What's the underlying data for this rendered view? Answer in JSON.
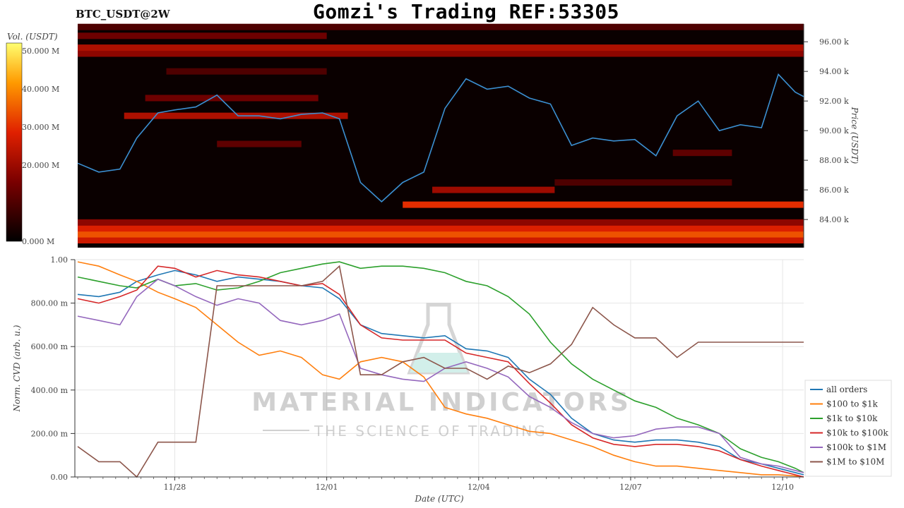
{
  "header": {
    "title": "Gomzi's Trading REF:53305",
    "pair": "BTC_USDT@2W"
  },
  "watermark": {
    "brand": "MATERIAL INDICATORS",
    "tagline": "THE SCIENCE OF TRADING"
  },
  "colors": {
    "price_line": "#3b8fd1",
    "all_orders": "#1f77b4",
    "r100_1k": "#ff7f0e",
    "r1k_10k": "#2ca02c",
    "r10k_100k": "#d62728",
    "r100k_1m": "#9467bd",
    "r1m_10m": "#8c564b"
  },
  "chart_data": [
    {
      "type": "heatmap",
      "title": "",
      "colorbar": {
        "label": "Vol. (USDT)",
        "ticks": [
          "0.000 M",
          "20.000 M",
          "30.000 M",
          "40.000 M",
          "50.000 M"
        ],
        "tick_values": [
          0,
          20,
          30,
          40,
          50
        ],
        "range": [
          0,
          52
        ]
      },
      "ylabel": "Price (USDT)",
      "y_ticks": [
        "84.00 k",
        "86.00 k",
        "88.00 k",
        "90.00 k",
        "92.00 k",
        "94.00 k",
        "96.00 k"
      ],
      "y_tick_values": [
        84,
        86,
        88,
        90,
        92,
        94,
        96
      ],
      "ylim": [
        82.1,
        97.2
      ],
      "xlim": [
        "11/26 02:00",
        "12/10 10:00"
      ],
      "price_series": {
        "name": "",
        "x": [
          "11/26 02:00",
          "11/26 12:00",
          "11/26 22:00",
          "11/27 06:00",
          "11/27 16:00",
          "11/28 00:00",
          "11/28 10:00",
          "11/28 20:00",
          "11/29 06:00",
          "11/29 16:00",
          "11/30 02:00",
          "11/30 12:00",
          "11/30 22:00",
          "12/01 06:00",
          "12/01 16:00",
          "12/02 02:00",
          "12/02 12:00",
          "12/02 22:00",
          "12/03 08:00",
          "12/03 18:00",
          "12/04 04:00",
          "12/04 14:00",
          "12/05 00:00",
          "12/05 10:00",
          "12/05 20:00",
          "12/06 06:00",
          "12/06 16:00",
          "12/07 02:00",
          "12/07 12:00",
          "12/07 22:00",
          "12/08 08:00",
          "12/08 18:00",
          "12/09 04:00",
          "12/09 14:00",
          "12/09 22:00",
          "12/10 06:00",
          "12/10 10:00"
        ],
        "y": [
          87.8,
          87.2,
          87.4,
          89.5,
          91.2,
          91.4,
          91.6,
          92.4,
          91.0,
          91.0,
          90.8,
          91.1,
          91.2,
          90.8,
          86.5,
          85.2,
          86.5,
          87.2,
          91.5,
          93.5,
          92.8,
          93.0,
          92.2,
          91.8,
          89.0,
          89.5,
          89.3,
          89.4,
          88.3,
          91.0,
          92.0,
          90.0,
          90.4,
          90.2,
          93.8,
          92.6,
          92.3
        ]
      },
      "bands": [
        {
          "price": 82.6,
          "from": "11/26 02:00",
          "to": "12/10 10:00",
          "level": 26
        },
        {
          "price": 83.0,
          "from": "11/26 02:00",
          "to": "12/10 10:00",
          "level": 34
        },
        {
          "price": 83.4,
          "from": "11/26 02:00",
          "to": "12/10 10:00",
          "level": 28
        },
        {
          "price": 83.8,
          "from": "11/26 02:00",
          "to": "12/10 10:00",
          "level": 18
        },
        {
          "price": 85.0,
          "from": "12/02 12:00",
          "to": "12/10 10:00",
          "level": 30
        },
        {
          "price": 86.0,
          "from": "12/03 02:00",
          "to": "12/05 12:00",
          "level": 20
        },
        {
          "price": 86.5,
          "from": "12/05 12:00",
          "to": "12/09 00:00",
          "level": 10
        },
        {
          "price": 89.1,
          "from": "11/28 20:00",
          "to": "11/30 12:00",
          "level": 12
        },
        {
          "price": 88.5,
          "from": "12/07 20:00",
          "to": "12/09 00:00",
          "level": 12
        },
        {
          "price": 91.0,
          "from": "11/27 00:00",
          "to": "12/01 10:00",
          "level": 22
        },
        {
          "price": 92.2,
          "from": "11/27 10:00",
          "to": "11/30 20:00",
          "level": 14
        },
        {
          "price": 94.0,
          "from": "11/27 20:00",
          "to": "12/01 00:00",
          "level": 10
        },
        {
          "price": 95.2,
          "from": "11/26 02:00",
          "to": "12/10 10:00",
          "level": 18
        },
        {
          "price": 95.6,
          "from": "11/26 02:00",
          "to": "12/10 10:00",
          "level": 22
        },
        {
          "price": 96.4,
          "from": "11/26 02:00",
          "to": "12/01 00:00",
          "level": 14
        },
        {
          "price": 97.0,
          "from": "11/26 02:00",
          "to": "12/10 10:00",
          "level": 10
        }
      ]
    },
    {
      "type": "line",
      "title": "",
      "xlabel": "Date (UTC)",
      "ylabel": "Norm. CVD (arb. u.)",
      "x_ticks": [
        "11/28",
        "12/01",
        "12/04",
        "12/07",
        "12/10"
      ],
      "y_ticks": [
        "0.00",
        "200.00 m",
        "400.00 m",
        "600.00 m",
        "800.00 m",
        "1.00"
      ],
      "y_tick_values": [
        0,
        0.2,
        0.4,
        0.6,
        0.8,
        1.0
      ],
      "ylim": [
        0,
        1.0
      ],
      "xlim": [
        "11/26 02:00",
        "12/10 10:00"
      ],
      "legend_position": "right",
      "x": [
        "11/26 02:00",
        "11/26 12:00",
        "11/26 22:00",
        "11/27 06:00",
        "11/27 16:00",
        "11/28 00:00",
        "11/28 10:00",
        "11/28 20:00",
        "11/29 06:00",
        "11/29 16:00",
        "11/30 02:00",
        "11/30 12:00",
        "11/30 22:00",
        "12/01 06:00",
        "12/01 16:00",
        "12/02 02:00",
        "12/02 12:00",
        "12/02 22:00",
        "12/03 08:00",
        "12/03 18:00",
        "12/04 04:00",
        "12/04 14:00",
        "12/05 00:00",
        "12/05 10:00",
        "12/05 20:00",
        "12/06 06:00",
        "12/06 16:00",
        "12/07 02:00",
        "12/07 12:00",
        "12/07 22:00",
        "12/08 08:00",
        "12/08 18:00",
        "12/09 04:00",
        "12/09 14:00",
        "12/09 22:00",
        "12/10 06:00",
        "12/10 10:00"
      ],
      "series": [
        {
          "name": "all orders",
          "values": [
            0.84,
            0.83,
            0.85,
            0.9,
            0.93,
            0.95,
            0.93,
            0.9,
            0.92,
            0.91,
            0.9,
            0.88,
            0.87,
            0.82,
            0.7,
            0.66,
            0.65,
            0.64,
            0.65,
            0.59,
            0.58,
            0.55,
            0.45,
            0.38,
            0.27,
            0.2,
            0.17,
            0.16,
            0.17,
            0.17,
            0.16,
            0.14,
            0.08,
            0.06,
            0.04,
            0.02,
            0.01
          ]
        },
        {
          "name": "$100 to $1k",
          "values": [
            0.99,
            0.97,
            0.93,
            0.9,
            0.85,
            0.82,
            0.78,
            0.7,
            0.62,
            0.56,
            0.58,
            0.55,
            0.47,
            0.45,
            0.53,
            0.55,
            0.53,
            0.46,
            0.32,
            0.29,
            0.27,
            0.24,
            0.21,
            0.2,
            0.17,
            0.14,
            0.1,
            0.07,
            0.05,
            0.05,
            0.04,
            0.03,
            0.02,
            0.01,
            0.01,
            0.005,
            0.0
          ]
        },
        {
          "name": "$1k to $10k",
          "values": [
            0.92,
            0.9,
            0.88,
            0.87,
            0.91,
            0.88,
            0.89,
            0.86,
            0.87,
            0.9,
            0.94,
            0.96,
            0.98,
            0.99,
            0.96,
            0.97,
            0.97,
            0.96,
            0.94,
            0.9,
            0.88,
            0.83,
            0.75,
            0.62,
            0.52,
            0.45,
            0.4,
            0.35,
            0.32,
            0.27,
            0.24,
            0.2,
            0.13,
            0.09,
            0.07,
            0.04,
            0.02
          ]
        },
        {
          "name": "$10k to $100k",
          "values": [
            0.82,
            0.8,
            0.83,
            0.86,
            0.97,
            0.96,
            0.92,
            0.95,
            0.93,
            0.92,
            0.9,
            0.88,
            0.89,
            0.84,
            0.7,
            0.64,
            0.63,
            0.63,
            0.63,
            0.57,
            0.55,
            0.53,
            0.43,
            0.34,
            0.24,
            0.18,
            0.15,
            0.14,
            0.15,
            0.15,
            0.14,
            0.12,
            0.08,
            0.05,
            0.03,
            0.01,
            0.0
          ]
        },
        {
          "name": "$100k to $1M",
          "values": [
            0.74,
            0.72,
            0.7,
            0.83,
            0.91,
            0.88,
            0.83,
            0.79,
            0.82,
            0.8,
            0.72,
            0.7,
            0.72,
            0.75,
            0.5,
            0.47,
            0.45,
            0.44,
            0.5,
            0.53,
            0.5,
            0.46,
            0.37,
            0.32,
            0.25,
            0.2,
            0.18,
            0.19,
            0.22,
            0.23,
            0.23,
            0.2,
            0.09,
            0.06,
            0.05,
            0.03,
            0.02
          ]
        },
        {
          "name": "$1M to $10M",
          "values": [
            0.14,
            0.07,
            0.07,
            0.0,
            0.16,
            0.16,
            0.16,
            0.88,
            0.88,
            0.88,
            0.88,
            0.88,
            0.9,
            0.97,
            0.47,
            0.47,
            0.53,
            0.55,
            0.5,
            0.5,
            0.45,
            0.51,
            0.48,
            0.52,
            0.61,
            0.78,
            0.7,
            0.64,
            0.64,
            0.55,
            0.62,
            0.62,
            0.62,
            0.62,
            0.62,
            0.62,
            0.62
          ]
        }
      ]
    }
  ]
}
